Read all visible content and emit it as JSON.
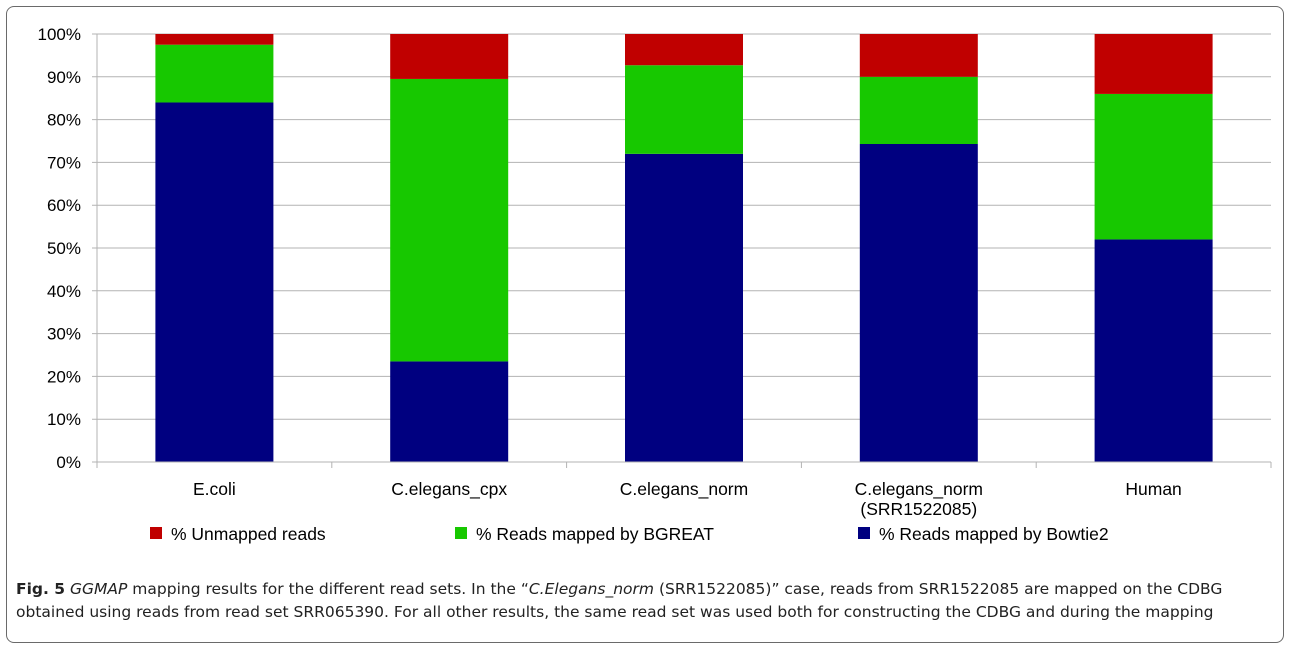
{
  "chart_data": {
    "type": "bar",
    "stacked": true,
    "percent_stacked": true,
    "categories": [
      [
        "E.coli"
      ],
      [
        "C.elegans_cpx"
      ],
      [
        "C.elegans_norm"
      ],
      [
        "C.elegans_norm",
        "(SRR1522085)"
      ],
      [
        "Human"
      ]
    ],
    "series": [
      {
        "name": "% Reads mapped by Bowtie2",
        "color": "#000080",
        "values": [
          84,
          23.5,
          72,
          74.3,
          52
        ]
      },
      {
        "name": "% Reads mapped by BGREAT",
        "color": "#17c800",
        "values": [
          13.5,
          66,
          20.7,
          15.7,
          34
        ]
      },
      {
        "name": "% Unmapped reads",
        "color": "#c00000",
        "values": [
          2.5,
          10.5,
          7.3,
          10,
          14
        ]
      }
    ],
    "legend_order": [
      "% Unmapped reads",
      "% Reads mapped by BGREAT",
      "% Reads mapped by Bowtie2"
    ],
    "legend_position": "bottom",
    "ylim": [
      0,
      100
    ],
    "yticks": [
      "0%",
      "10%",
      "20%",
      "30%",
      "40%",
      "50%",
      "60%",
      "70%",
      "80%",
      "90%",
      "100%"
    ],
    "grid": true
  },
  "caption": {
    "label": "Fig. 5",
    "tool": "GGMAP",
    "text1": " mapping results for the different read sets. In the “",
    "case_italic": "C.Elegans_norm",
    "text2": " (SRR1522085)” case, reads from SRR1522085 are mapped on the CDBG obtained using reads from read set SRR065390. For all other results, the same read set was used both for constructing the CDBG and during the mapping"
  }
}
